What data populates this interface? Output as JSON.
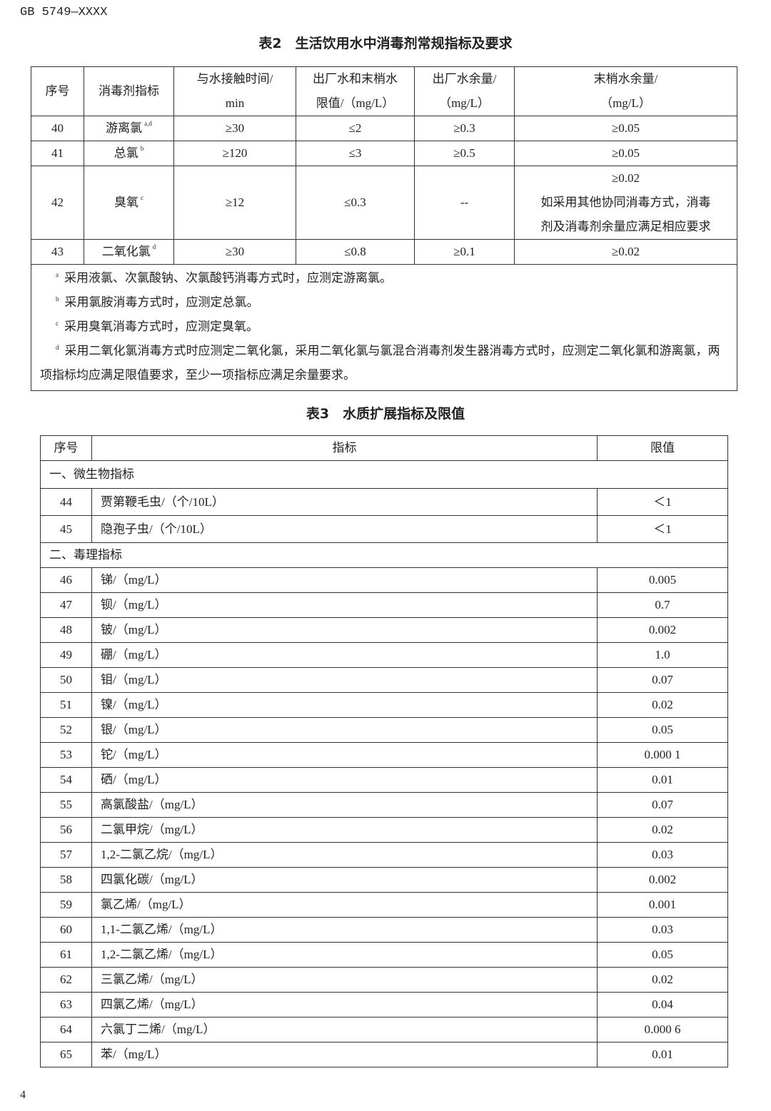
{
  "header": "GB 5749—XXXX",
  "page_number": "4",
  "table2": {
    "title": "表2　生活饮用水中消毒剂常规指标及要求",
    "headers": [
      "序号",
      "消毒剂指标",
      "与水接触时间/\nmin",
      "出厂水和末梢水\n限值/（mg/L）",
      "出厂水余量/\n（mg/L）",
      "末梢水余量/\n（mg/L）"
    ],
    "rows": [
      {
        "no": "40",
        "name": "游离氯",
        "sup": "a,d",
        "time": "≥30",
        "limit": "≤2",
        "factory": "≥0.3",
        "tap": "≥0.05"
      },
      {
        "no": "41",
        "name": "总氯",
        "sup": "b",
        "time": "≥120",
        "limit": "≤3",
        "factory": "≥0.5",
        "tap": "≥0.05"
      },
      {
        "no": "42",
        "name": "臭氧",
        "sup": "c",
        "time": "≥12",
        "limit": "≤0.3",
        "factory": "--",
        "tap": "≥0.02\n如采用其他协同消毒方式，消毒\n剂及消毒剂余量应满足相应要求"
      },
      {
        "no": "43",
        "name": "二氧化氯",
        "sup": "d",
        "time": "≥30",
        "limit": "≤0.8",
        "factory": "≥0.1",
        "tap": "≥0.02"
      }
    ],
    "notes": [
      {
        "mark": "a",
        "text": "采用液氯、次氯酸钠、次氯酸钙消毒方式时，应测定游离氯。"
      },
      {
        "mark": "b",
        "text": "采用氯胺消毒方式时，应测定总氯。"
      },
      {
        "mark": "c",
        "text": "采用臭氧消毒方式时，应测定臭氧。"
      },
      {
        "mark": "d",
        "text": "采用二氧化氯消毒方式时应测定二氧化氯，采用二氧化氯与氯混合消毒剂发生器消毒方式时，应测定二氧化氯和游离氯，两项指标均应满足限值要求，至少一项指标应满足余量要求。"
      }
    ]
  },
  "table3": {
    "title": "表3　水质扩展指标及限值",
    "headers": [
      "序号",
      "指标",
      "限值"
    ],
    "sections": [
      {
        "label": "一、微生物指标",
        "rows": [
          [
            "44",
            "贾第鞭毛虫/（个/10L）",
            "＜1"
          ],
          [
            "45",
            "隐孢子虫/（个/10L）",
            "＜1"
          ]
        ]
      },
      {
        "label": "二、毒理指标",
        "rows": [
          [
            "46",
            "锑/（mg/L）",
            "0.005"
          ],
          [
            "47",
            "钡/（mg/L）",
            "0.7"
          ],
          [
            "48",
            "铍/（mg/L）",
            "0.002"
          ],
          [
            "49",
            "硼/（mg/L）",
            "1.0"
          ],
          [
            "50",
            "钼/（mg/L）",
            "0.07"
          ],
          [
            "51",
            "镍/（mg/L）",
            "0.02"
          ],
          [
            "52",
            "银/（mg/L）",
            "0.05"
          ],
          [
            "53",
            "铊/（mg/L）",
            "0.000 1"
          ],
          [
            "54",
            "硒/（mg/L）",
            "0.01"
          ],
          [
            "55",
            "高氯酸盐/（mg/L）",
            "0.07"
          ],
          [
            "56",
            "二氯甲烷/（mg/L）",
            "0.02"
          ],
          [
            "57",
            "1,2-二氯乙烷/（mg/L）",
            "0.03"
          ],
          [
            "58",
            "四氯化碳/（mg/L）",
            "0.002"
          ],
          [
            "59",
            "氯乙烯/（mg/L）",
            "0.001"
          ],
          [
            "60",
            "1,1-二氯乙烯/（mg/L）",
            "0.03"
          ],
          [
            "61",
            "1,2-二氯乙烯/（mg/L）",
            "0.05"
          ],
          [
            "62",
            "三氯乙烯/（mg/L）",
            "0.02"
          ],
          [
            "63",
            "四氯乙烯/（mg/L）",
            "0.04"
          ],
          [
            "64",
            "六氯丁二烯/（mg/L）",
            "0.000 6"
          ],
          [
            "65",
            "苯/（mg/L）",
            "0.01"
          ]
        ]
      }
    ]
  }
}
